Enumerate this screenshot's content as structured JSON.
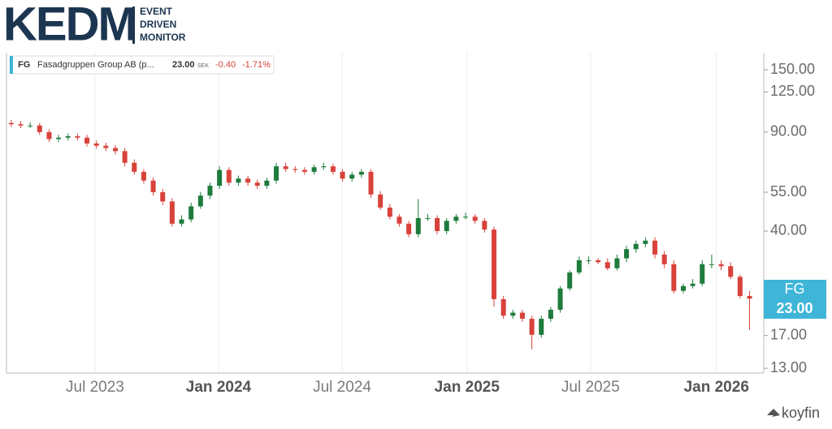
{
  "logo": {
    "name": "KEDM",
    "lines": [
      "EVENT",
      "DRIVEN",
      "MONITOR"
    ]
  },
  "legend": {
    "symbol": "FG",
    "name": "Fasadgruppen Group AB (p...",
    "price": "23.00",
    "currency": "SEK",
    "change": "-0.40",
    "change_pct": "-1.71%"
  },
  "price_tag": {
    "symbol": "FG",
    "price": "23.00"
  },
  "brand": "koyfin",
  "chart_data": {
    "type": "candlestick",
    "log_scale": true,
    "up_color": "#1e7b3c",
    "down_color": "#d8423b",
    "xlim": [
      0,
      160
    ],
    "ylim": [
      12.5,
      172.5
    ],
    "xticks": [
      {
        "value": 18.7,
        "label": "Jul 2023"
      },
      {
        "value": 44.8,
        "label": "Jan 2024"
      },
      {
        "value": 70.9,
        "label": "Jul 2024"
      },
      {
        "value": 97.3,
        "label": "Jan 2025"
      },
      {
        "value": 123.4,
        "label": "Jul 2025"
      },
      {
        "value": 150,
        "label": "Jan 2026"
      }
    ],
    "yticks": [
      {
        "value": 150,
        "label": "150.00"
      },
      {
        "value": 125,
        "label": "125.00"
      },
      {
        "value": 90,
        "label": "90.00"
      },
      {
        "value": 55,
        "label": "55.00"
      },
      {
        "value": 40,
        "label": "40.00"
      },
      {
        "value": 17,
        "label": "17.00"
      },
      {
        "value": 13,
        "label": "13.00"
      }
    ],
    "x": [
      1,
      3,
      5,
      7,
      9,
      11,
      13,
      15,
      17,
      19,
      21,
      23,
      25,
      27,
      29,
      31,
      33,
      35,
      37,
      39,
      41,
      43,
      45,
      47,
      49,
      51,
      53,
      55,
      57,
      59,
      61,
      63,
      65,
      67,
      69,
      71,
      73,
      75,
      77,
      79,
      81,
      83,
      85,
      87,
      89,
      91,
      93,
      95,
      97,
      99,
      101,
      103,
      105,
      107,
      109,
      111,
      113,
      115,
      117,
      119,
      121,
      123,
      125,
      127,
      129,
      131,
      133,
      135,
      137,
      139,
      141,
      143,
      145,
      147,
      149,
      151,
      153,
      155,
      157
    ],
    "open": [
      97,
      96,
      95,
      95,
      90,
      85,
      86,
      87,
      86,
      82,
      80.5,
      79,
      77,
      70,
      65,
      60.5,
      55,
      51,
      42.5,
      44,
      49,
      53.5,
      58,
      66,
      59.5,
      61.5,
      59.5,
      58,
      60.5,
      68,
      66.5,
      66,
      65,
      67.5,
      68,
      65,
      61.5,
      63.5,
      65,
      54,
      48.5,
      45,
      42.5,
      39,
      44.5,
      44.5,
      40,
      43.5,
      45,
      45,
      43.5,
      40.5,
      22.9,
      20,
      20.5,
      19.5,
      17.1,
      19.5,
      21,
      25,
      28.5,
      31.5,
      31.5,
      31,
      29.5,
      32,
      34.5,
      36,
      37,
      33,
      30.5,
      24.5,
      25.5,
      26,
      30.5,
      30.5,
      30,
      27.5,
      23.5
    ],
    "high": [
      99.5,
      98.5,
      97.5,
      97,
      92,
      88,
      89,
      89,
      88,
      84,
      82.5,
      81,
      79,
      72,
      66.5,
      62,
      56.5,
      52.5,
      45.5,
      50.5,
      55,
      59.5,
      68,
      67.5,
      63,
      63,
      61,
      62,
      70,
      70,
      68,
      67.5,
      69,
      70,
      69.5,
      66.5,
      65,
      66.5,
      66.5,
      55.5,
      50,
      46,
      43.5,
      52,
      46,
      45.5,
      44.5,
      46,
      46.5,
      46,
      44.5,
      41.5,
      23.5,
      21,
      21,
      20,
      20,
      21.5,
      25.5,
      29,
      32.5,
      32.5,
      32,
      32,
      33,
      35.5,
      37,
      38,
      38,
      34,
      31.5,
      26,
      27,
      31.5,
      33,
      31.5,
      31,
      28,
      24.5
    ],
    "low": [
      94,
      93,
      93,
      88,
      83,
      83,
      84,
      84,
      80,
      78.5,
      77,
      75,
      68,
      63.5,
      59,
      53.5,
      49.5,
      41.5,
      41.5,
      43,
      48,
      52,
      56.5,
      58,
      58,
      58,
      56.5,
      56.5,
      59,
      65,
      64.5,
      63.5,
      63.5,
      66,
      63.5,
      60,
      60,
      62,
      52.5,
      47.5,
      44,
      41.5,
      38,
      38,
      43.5,
      39,
      39,
      42.5,
      44,
      42.5,
      39.5,
      21.5,
      19.5,
      19.5,
      19,
      15.2,
      16.7,
      19,
      20.5,
      24.5,
      28,
      30.5,
      30.5,
      29,
      29,
      31,
      33.5,
      35,
      32,
      29.5,
      24,
      24,
      25,
      25.5,
      29.5,
      29,
      27,
      23,
      17.8
    ],
    "close": [
      96,
      95,
      95,
      90,
      85,
      86,
      87,
      86,
      82,
      80.5,
      79,
      77,
      70,
      65,
      60.5,
      55,
      51,
      42.5,
      44,
      49,
      53.5,
      58,
      66,
      59.5,
      61.5,
      59.5,
      58,
      60.5,
      68,
      66.5,
      66,
      65,
      67.5,
      68,
      65,
      61.5,
      63.5,
      65,
      54,
      48.5,
      45,
      42.5,
      39,
      44.5,
      44.5,
      40,
      43.5,
      45,
      45,
      43.5,
      40.5,
      22.9,
      20,
      20.5,
      19.5,
      17.1,
      19.5,
      21,
      25,
      28.5,
      31.5,
      31.5,
      31,
      29.5,
      32,
      34.5,
      36,
      37,
      33,
      30.5,
      24.5,
      25.5,
      26,
      30.5,
      30.5,
      30,
      27.5,
      23.5,
      23
    ]
  }
}
